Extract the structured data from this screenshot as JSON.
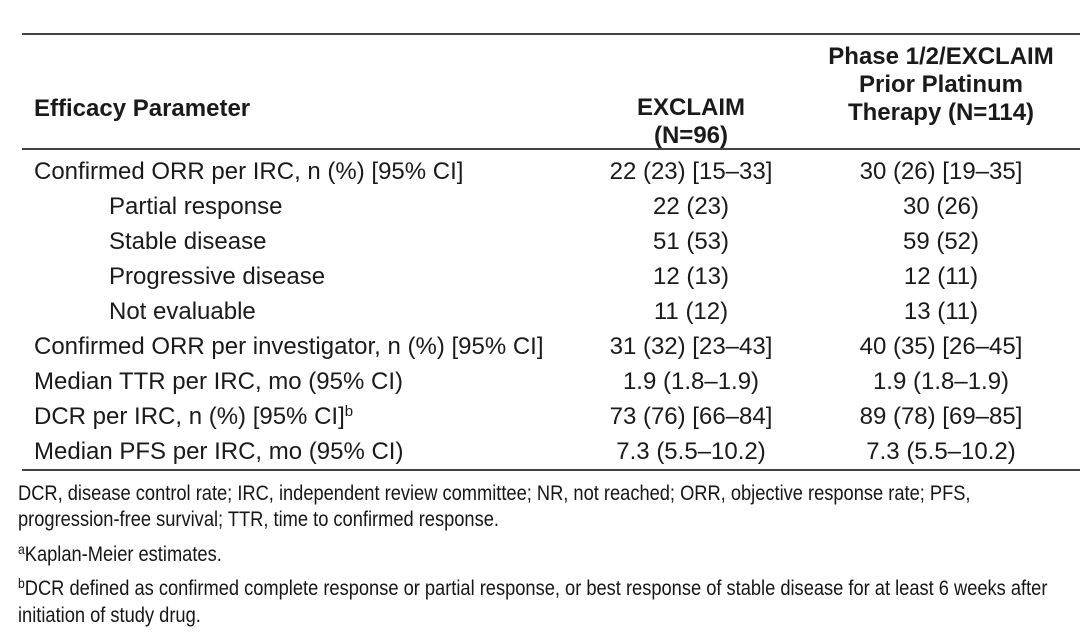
{
  "colors": {
    "text": "#1a1a1a",
    "rule": "#424242",
    "background": "#ffffff"
  },
  "table": {
    "header": {
      "col1": "Efficacy Parameter",
      "col2_lines": [
        "EXCLAIM",
        "(N=96)"
      ],
      "col3_lines": [
        "Phase 1/2/EXCLAIM",
        "Prior Platinum",
        "Therapy (N=114)"
      ]
    },
    "rows": [
      {
        "label": "Confirmed ORR per IRC, n (%) [95% CI]",
        "exclaim": "22 (23) [15–33]",
        "phase": "30 (26) [19–35]"
      },
      {
        "label": "Partial response",
        "exclaim": "22 (23)",
        "phase": "30 (26)"
      },
      {
        "label": "Stable disease",
        "exclaim": "51 (53)",
        "phase": "59 (52)"
      },
      {
        "label": "Progressive disease",
        "exclaim": "12 (13)",
        "phase": "12 (11)"
      },
      {
        "label": "Not evaluable",
        "exclaim": "11 (12)",
        "phase": "13 (11)"
      },
      {
        "label": "Confirmed ORR per investigator, n (%) [95% CI]",
        "exclaim": "31 (32) [23–43]",
        "phase": "40 (35) [26–45]"
      },
      {
        "label": "Median TTR per IRC, mo (95% CI)",
        "exclaim": "1.9 (1.8–1.9)",
        "phase": "1.9 (1.8–1.9)"
      },
      {
        "label": "DCR per IRC, n (%) [95% CI]",
        "sup": "b",
        "exclaim": "73 (76) [66–84]",
        "phase": "89 (78) [69–85]"
      },
      {
        "label": "Median PFS per IRC, mo (95% CI)",
        "exclaim": "7.3 (5.5–10.2)",
        "phase": "7.3 (5.5–10.2)"
      }
    ]
  },
  "footnotes": {
    "abbreviations": "DCR, disease control rate; IRC, independent review committee; NR, not reached; ORR, objective response rate; PFS, progression-free survival; TTR, time to confirmed response.",
    "notes": [
      {
        "marker": "a",
        "text": "Kaplan-Meier estimates."
      },
      {
        "marker": "b",
        "text": "DCR defined as confirmed complete response or partial response, or best response of stable disease for at least 6 weeks after initiation of study drug."
      }
    ]
  }
}
